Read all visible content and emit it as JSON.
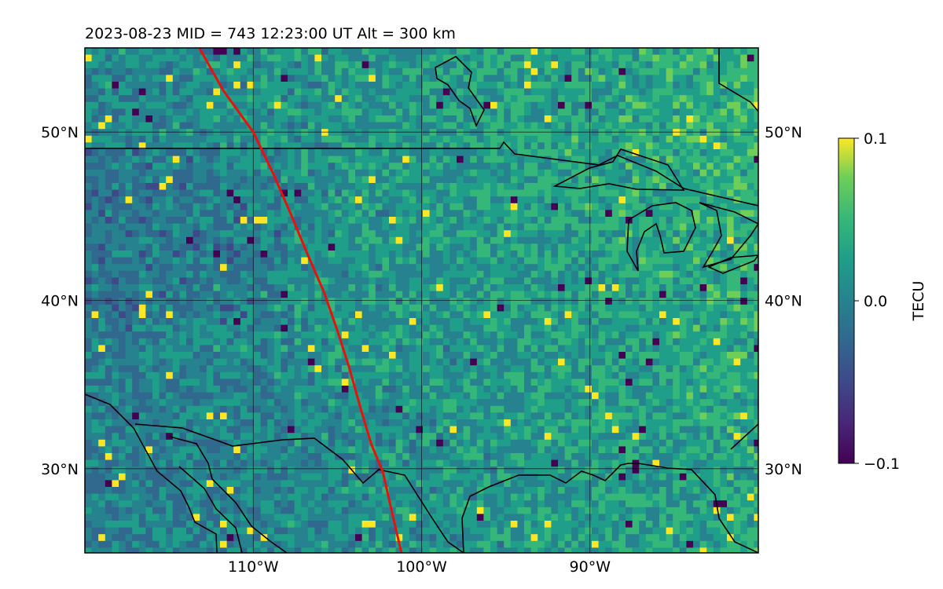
{
  "chart_data": {
    "type": "heatmap",
    "title": "2023-08-23  MID = 743    12:23:00  UT  Alt = 300 km",
    "xlim": [
      -120,
      -80
    ],
    "ylim": [
      25,
      55
    ],
    "x_ticks": [
      {
        "value": -110,
        "label": "110°W"
      },
      {
        "value": -100,
        "label": "100°W"
      },
      {
        "value": -90,
        "label": "90°W"
      }
    ],
    "y_ticks": [
      {
        "value": 30,
        "label": "30°N"
      },
      {
        "value": 40,
        "label": "40°N"
      },
      {
        "value": 50,
        "label": "50°N"
      }
    ],
    "grid": true,
    "colormap": "viridis",
    "colorbar": {
      "label": "TECU",
      "min": -0.1,
      "max": 0.1,
      "ticks": [
        {
          "value": 0.1,
          "label": "0.1"
        },
        {
          "value": 0.0,
          "label": "0.0"
        },
        {
          "value": -0.1,
          "label": "−0.1"
        }
      ]
    },
    "terminator_line": {
      "color": "#e8120c",
      "points": [
        [
          -113.2,
          55
        ],
        [
          -111.8,
          52.5
        ],
        [
          -110,
          50
        ],
        [
          -108.8,
          47.5
        ],
        [
          -107.8,
          45.2
        ],
        [
          -106.8,
          42.8
        ],
        [
          -105.8,
          40.5
        ],
        [
          -105.0,
          38.2
        ],
        [
          -104.3,
          36.0
        ],
        [
          -103.6,
          33.5
        ],
        [
          -103.0,
          31.5
        ],
        [
          -102.3,
          29.8
        ],
        [
          -101.8,
          27.6
        ],
        [
          -101.2,
          25
        ]
      ]
    },
    "coastline_color": "#000000"
  }
}
